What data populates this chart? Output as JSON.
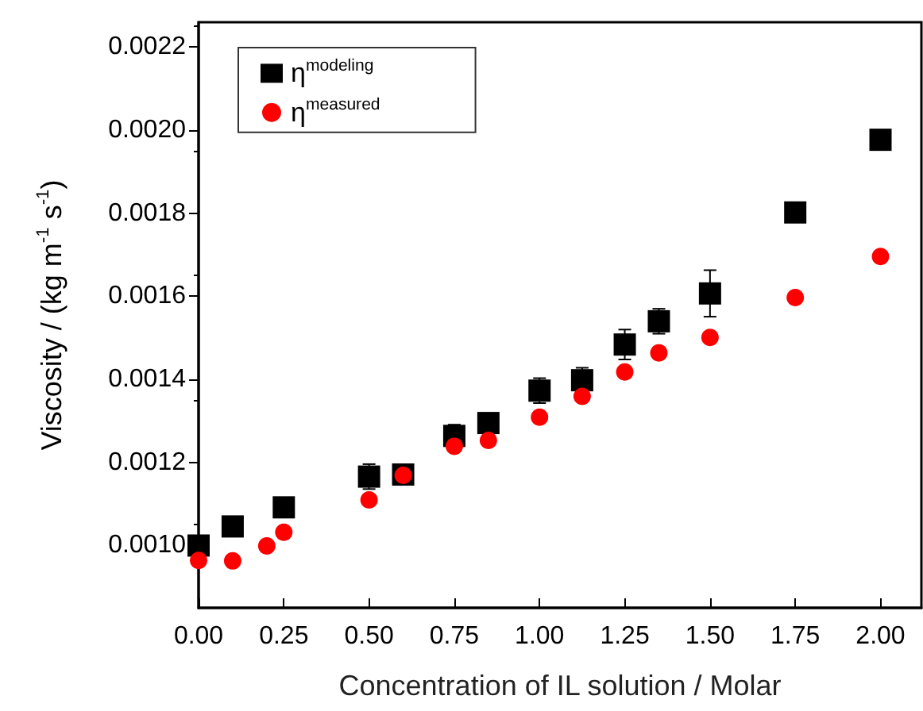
{
  "chart_data": {
    "type": "scatter",
    "xlabel": "Concentration of IL solution / Molar",
    "ylabel": "Viscosity / (kg m$^{-1}$ s$^{-1}$)",
    "xlim": [
      0,
      2.12
    ],
    "xticks": [
      {
        "value": 0,
        "label": "0.00"
      },
      {
        "value": 0.25,
        "label": "0.25"
      },
      {
        "value": 0.5,
        "label": "0.50"
      },
      {
        "value": 0.75,
        "label": "0.75"
      },
      {
        "value": 1,
        "label": "1.00"
      },
      {
        "value": 1.25,
        "label": "1.25"
      },
      {
        "value": 1.5,
        "label": "1.50"
      },
      {
        "value": 1.75,
        "label": "1.75"
      },
      {
        "value": 2,
        "label": "2.00"
      }
    ],
    "ylim": [
      0.00085,
      0.00226
    ],
    "yticks": [
      {
        "value": 0.001,
        "label": "0.0010"
      },
      {
        "value": 0.0012,
        "label": "0.0012"
      },
      {
        "value": 0.0014,
        "label": "0.0014"
      },
      {
        "value": 0.0016,
        "label": "0.0016"
      },
      {
        "value": 0.0018,
        "label": "0.0018"
      },
      {
        "value": 0.002,
        "label": "0.0020"
      },
      {
        "value": 0.0022,
        "label": "0.0022"
      }
    ],
    "legend": "top left",
    "grid": false,
    "series": [
      {
        "name": "η$^{modeling}$",
        "color": "#000000",
        "marker": "square",
        "x": [
          0,
          0.1,
          0.25,
          0.5,
          0.6,
          0.75,
          0.85,
          1,
          1.125,
          1.25,
          1.35,
          1.5,
          1.75,
          2
        ],
        "values": [
          0.001,
          0.001046,
          0.001092,
          0.001166,
          0.001171,
          0.001264,
          0.001295,
          0.001373,
          0.001398,
          0.001484,
          0.00154,
          0.001607,
          0.001802,
          0.001977
        ],
        "errors": [
          null,
          null,
          1e-05,
          3e-05,
          null,
          2.7e-05,
          null,
          3e-05,
          3e-05,
          3.6e-05,
          3e-05,
          5.6e-05,
          1e-05,
          null
        ]
      },
      {
        "name": "η$^{measured}$",
        "color": "#ff0000",
        "marker": "circle",
        "x": [
          0,
          0.1,
          0.2,
          0.25,
          0.5,
          0.6,
          0.75,
          0.85,
          1,
          1.125,
          1.25,
          1.35,
          1.5,
          1.75,
          2
        ],
        "values": [
          0.000964,
          0.000963,
          0.000999,
          0.001032,
          0.00111,
          0.001169,
          0.001239,
          0.001253,
          0.001309,
          0.001359,
          0.001418,
          0.001464,
          0.001501,
          0.001597,
          0.001696
        ]
      }
    ]
  }
}
